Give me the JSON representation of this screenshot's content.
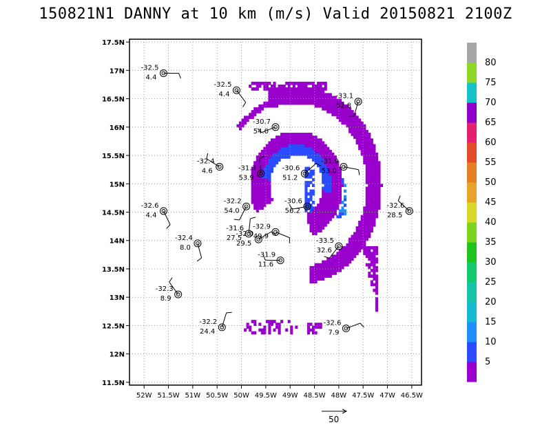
{
  "title": "150821N1 DANNY at 10 km (m/s) Valid 20150821 2100Z",
  "ref_vector_label": "50",
  "chart_data": {
    "type": "heatmap",
    "title": "150821N1 DANNY at 10 km (m/s) Valid 20150821 2100Z",
    "xlabel": "",
    "ylabel": "",
    "xlim": [
      -52.3,
      -46.3
    ],
    "ylim": [
      11.45,
      17.55
    ],
    "x_ticks": [
      -52,
      -51.5,
      -51,
      -50.5,
      -50,
      -49.5,
      -49,
      -48.5,
      -48,
      -47.5,
      -47,
      -46.5
    ],
    "x_tick_labels": [
      "52W",
      "51.5W",
      "51W",
      "50.5W",
      "50W",
      "49.5W",
      "49W",
      "48.5W",
      "48W",
      "47.5W",
      "47W",
      "46.5W"
    ],
    "y_ticks": [
      11.5,
      12,
      12.5,
      13,
      13.5,
      14,
      14.5,
      15,
      15.5,
      16,
      16.5,
      17,
      17.5
    ],
    "y_tick_labels": [
      "11.5N",
      "12N",
      "12.5N",
      "13N",
      "13.5N",
      "14N",
      "14.5N",
      "15N",
      "15.5N",
      "16N",
      "16.5N",
      "17N",
      "17.5N"
    ],
    "grid": true,
    "colorbar": {
      "levels": [
        5,
        10,
        15,
        20,
        25,
        30,
        35,
        40,
        45,
        50,
        55,
        60,
        65,
        70,
        75,
        80
      ],
      "labels": [
        "5",
        "10",
        "15",
        "20",
        "25",
        "30",
        "35",
        "40",
        "45",
        "50",
        "55",
        "60",
        "65",
        "70",
        "75",
        "80"
      ],
      "colors": [
        "#9900cc",
        "#7a00d6",
        "#2b4bff",
        "#1f8fff",
        "#17b9cf",
        "#18c4a8",
        "#17c96e",
        "#1fc21f",
        "#7ed321",
        "#d8d82a",
        "#e6a52a",
        "#e57f24",
        "#e44b2b",
        "#e51f70",
        "#8e00c8",
        "#14c2c8",
        "#8ed629",
        "#a6a6a6"
      ],
      "fill_colors": [
        "#9900cc",
        "#2b4bff",
        "#1f8fff",
        "#17b9cf",
        "#18c4a8",
        "#17c96e",
        "#1fc21f",
        "#7ed321",
        "#d8d82a",
        "#e6a52a",
        "#e57f24",
        "#e44b2b",
        "#e51f70",
        "#8e00c8",
        "#14c2c8",
        "#8ed629",
        "#a6a6a6"
      ]
    },
    "observations": [
      {
        "lon": -51.6,
        "lat": 16.95,
        "t": "-32.5",
        "w": "4.4"
      },
      {
        "lon": -50.1,
        "lat": 16.65,
        "t": "-32.5",
        "w": "4.4"
      },
      {
        "lon": -47.6,
        "lat": 16.45,
        "t": "-33.1",
        "w": "52.8"
      },
      {
        "lon": -49.3,
        "lat": 16.0,
        "t": "-30.7",
        "w": "54.0"
      },
      {
        "lon": -50.45,
        "lat": 15.3,
        "t": "-32.4",
        "w": "4.6"
      },
      {
        "lon": -49.6,
        "lat": 15.18,
        "t": "-31.3",
        "w": "53.9"
      },
      {
        "lon": -48.7,
        "lat": 15.18,
        "t": "-30.6",
        "w": "51.2"
      },
      {
        "lon": -47.9,
        "lat": 15.3,
        "t": "-31.9",
        "w": "53.0"
      },
      {
        "lon": -51.6,
        "lat": 14.52,
        "t": "-32.6",
        "w": "4.4"
      },
      {
        "lon": -49.9,
        "lat": 14.6,
        "t": "-32.2",
        "w": "54.0"
      },
      {
        "lon": -48.65,
        "lat": 14.6,
        "t": "-30.6",
        "w": "56.2"
      },
      {
        "lon": -46.55,
        "lat": 14.52,
        "t": "-32.6",
        "w": "28.5"
      },
      {
        "lon": -49.85,
        "lat": 14.12,
        "t": "-31.6",
        "w": "27.5"
      },
      {
        "lon": -49.65,
        "lat": 14.02,
        "t": "-32.0",
        "w": "29.5"
      },
      {
        "lon": -49.3,
        "lat": 14.15,
        "t": "-32.9",
        "w": "49.9"
      },
      {
        "lon": -50.9,
        "lat": 13.95,
        "t": "-32.4",
        "w": "8.0"
      },
      {
        "lon": -48.0,
        "lat": 13.9,
        "t": "-33.5",
        "w": "32.6"
      },
      {
        "lon": -49.2,
        "lat": 13.65,
        "t": "-31.9",
        "w": "11.6"
      },
      {
        "lon": -51.3,
        "lat": 13.05,
        "t": "-32.3",
        "w": "8.9"
      },
      {
        "lon": -50.4,
        "lat": 12.47,
        "t": "-32.2",
        "w": "24.4"
      },
      {
        "lon": -47.85,
        "lat": 12.45,
        "t": "-32.6",
        "w": "7.9"
      }
    ]
  }
}
